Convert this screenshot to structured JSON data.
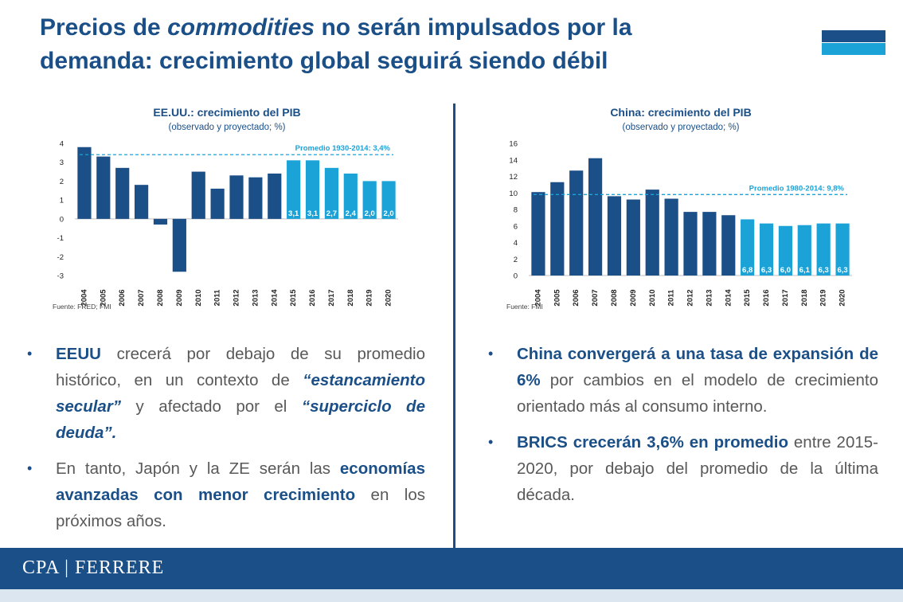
{
  "title": {
    "part1": "Precios de ",
    "part2": "commodities",
    "part3": " no serán impulsados por la demanda: crecimiento global seguirá siendo débil"
  },
  "colors": {
    "dark_blue": "#1b4f87",
    "light_blue": "#1ba3d8",
    "text_gray": "#595959",
    "corner_top": "#1b4f87",
    "corner_bottom": "#1ba3d8"
  },
  "chart_data": [
    {
      "type": "bar",
      "title": "EE.UU.: crecimiento del PIB",
      "subtitle": "(observado y proyectado; %)",
      "categories": [
        "2004",
        "2005",
        "2006",
        "2007",
        "2008",
        "2009",
        "2010",
        "2011",
        "2012",
        "2013",
        "2014",
        "2015",
        "2016",
        "2017",
        "2018",
        "2019",
        "2020"
      ],
      "values": [
        3.8,
        3.3,
        2.7,
        1.8,
        -0.3,
        -2.8,
        2.5,
        1.6,
        2.3,
        2.2,
        2.4,
        3.1,
        3.1,
        2.7,
        2.4,
        2.0,
        2.0
      ],
      "projected_from_index": 11,
      "data_labels": [
        "",
        "",
        "",
        "",
        "",
        "",
        "",
        "",
        "",
        "",
        "",
        "3,1",
        "3,1",
        "2,7",
        "2,4",
        "2,0",
        "2,0"
      ],
      "ylim": [
        -3,
        4
      ],
      "yticks": [
        4,
        3,
        2,
        1,
        0,
        -1,
        -2,
        -3
      ],
      "average": {
        "value": 3.4,
        "label": "Promedio 1930-2014: 3,4%"
      },
      "source": "Fuente: FRED; FMI"
    },
    {
      "type": "bar",
      "title": "China: crecimiento del PIB",
      "subtitle": "(observado y proyectado; %)",
      "categories": [
        "2004",
        "2005",
        "2006",
        "2007",
        "2008",
        "2009",
        "2010",
        "2011",
        "2012",
        "2013",
        "2014",
        "2015",
        "2016",
        "2017",
        "2018",
        "2019",
        "2020"
      ],
      "values": [
        10.1,
        11.3,
        12.7,
        14.2,
        9.6,
        9.2,
        10.4,
        9.3,
        7.7,
        7.7,
        7.3,
        6.8,
        6.3,
        6.0,
        6.1,
        6.3,
        6.3
      ],
      "projected_from_index": 11,
      "data_labels": [
        "",
        "",
        "",
        "",
        "",
        "",
        "",
        "",
        "",
        "",
        "",
        "6,8",
        "6,3",
        "6,0",
        "6,1",
        "6,3",
        "6,3"
      ],
      "ylim": [
        0,
        16
      ],
      "yticks": [
        16,
        14,
        12,
        10,
        8,
        6,
        4,
        2,
        0
      ],
      "average": {
        "value": 9.8,
        "label": "Promedio 1980-2014: 9,8%"
      },
      "source": "Fuente: FMI"
    }
  ],
  "left_bullets": {
    "b1_p1": "EEUU",
    "b1_p2": " crecerá por debajo de su promedio histórico, en un contexto de ",
    "b1_p3": "“estancamiento secular”",
    "b1_p4": " y afectado por el ",
    "b1_p5": "“superciclo de deuda”.",
    "b2_p1": "En tanto, Japón y la ZE serán las ",
    "b2_p2": "economías avanzadas con menor crecimiento",
    "b2_p3": " en los próximos años."
  },
  "right_bullets": {
    "b1_p1": "China convergerá a una tasa de expansión de 6%",
    "b1_p2": " por cambios en el modelo de crecimiento orientado más al consumo interno.",
    "b2_p1": "BRICS crecerán 3,6% en promedio",
    "b2_p2": " entre 2015-2020, por debajo del promedio de la última década."
  },
  "bullet_glyph": "•",
  "footer": {
    "logo": "CPA | FERRERE"
  }
}
